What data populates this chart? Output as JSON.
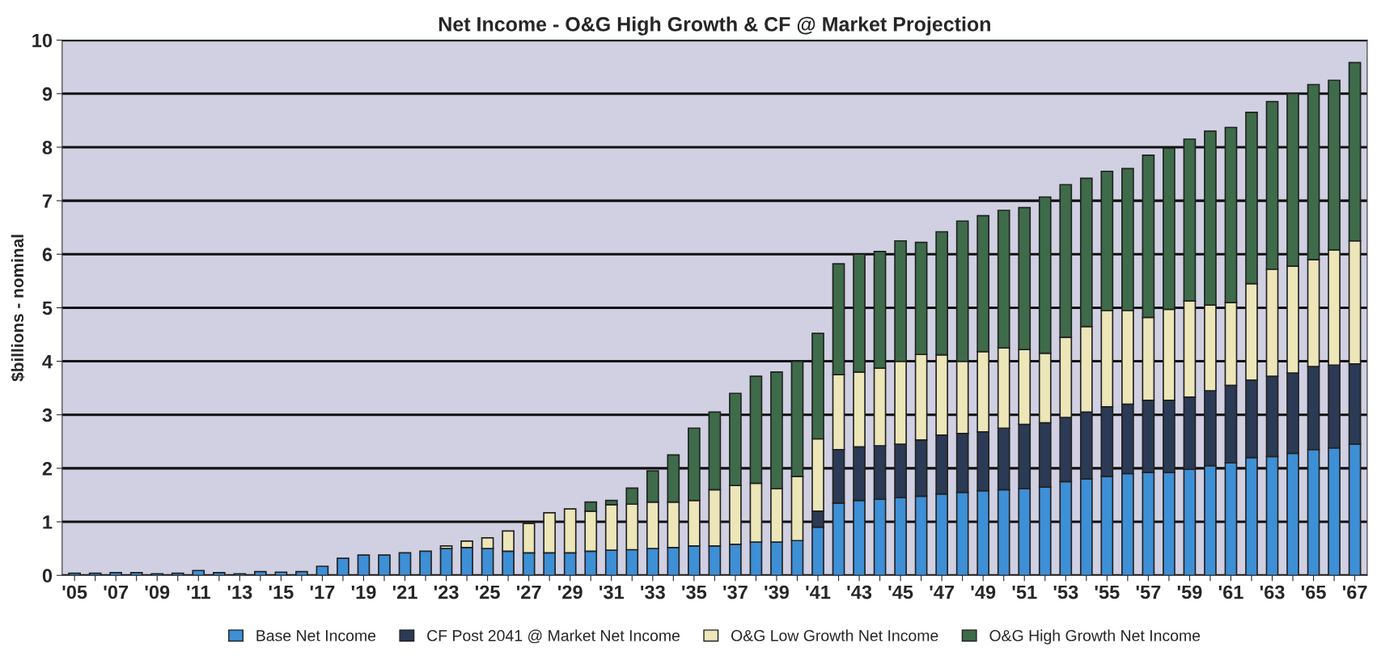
{
  "chart_data": {
    "type": "bar",
    "title": "Net Income - O&G High Growth & CF @ Market Projection",
    "ylabel": "$billions - nominal",
    "stacked": true,
    "grid": "y",
    "legend": "bottom",
    "categories": [
      "'05",
      null,
      "'07",
      null,
      "'09",
      null,
      "'11",
      null,
      "'13",
      null,
      "'15",
      null,
      "'17",
      null,
      "'19",
      null,
      "'21",
      null,
      "'23",
      null,
      "'25",
      null,
      "'27",
      null,
      "'29",
      null,
      "'31",
      null,
      "'33",
      null,
      "'35",
      null,
      "'37",
      null,
      "'39",
      null,
      "'41",
      null,
      "'43",
      null,
      "'45",
      null,
      "'47",
      null,
      "'49",
      null,
      "'51",
      null,
      "'53",
      null,
      "'55",
      null,
      "'57",
      null,
      "'59",
      null,
      "'61",
      null,
      "'63",
      null,
      "'65",
      null,
      "'67"
    ],
    "ylim": [
      0,
      10
    ],
    "yticks": [
      0,
      1,
      2,
      3,
      4,
      5,
      6,
      7,
      8,
      9,
      10
    ],
    "series": [
      {
        "name": "Base Net Income",
        "color": "#3d8fd6",
        "values": [
          0.04,
          0.04,
          0.05,
          0.05,
          0.03,
          0.04,
          0.09,
          0.05,
          0.03,
          0.07,
          0.06,
          0.07,
          0.17,
          0.32,
          0.38,
          0.38,
          0.42,
          0.45,
          0.5,
          0.52,
          0.5,
          0.45,
          0.42,
          0.42,
          0.42,
          0.45,
          0.47,
          0.48,
          0.5,
          0.52,
          0.55,
          0.55,
          0.58,
          0.62,
          0.62,
          0.65,
          0.9,
          1.35,
          1.4,
          1.42,
          1.45,
          1.48,
          1.52,
          1.55,
          1.58,
          1.6,
          1.62,
          1.65,
          1.75,
          1.8,
          1.85,
          1.9,
          1.92,
          1.92,
          1.98,
          2.05,
          2.1,
          2.2,
          2.22,
          2.28,
          2.35,
          2.38,
          2.45
        ]
      },
      {
        "name": "CF Post 2041 @ Market Net Income",
        "color": "#2b3a55",
        "values": [
          null,
          null,
          null,
          null,
          null,
          null,
          null,
          null,
          null,
          null,
          null,
          null,
          null,
          null,
          null,
          null,
          null,
          null,
          null,
          null,
          null,
          null,
          null,
          null,
          null,
          null,
          null,
          null,
          null,
          null,
          null,
          null,
          null,
          null,
          null,
          null,
          0.3,
          1.0,
          1.0,
          1.0,
          1.0,
          1.05,
          1.1,
          1.1,
          1.1,
          1.15,
          1.2,
          1.2,
          1.2,
          1.25,
          1.3,
          1.3,
          1.35,
          1.35,
          1.35,
          1.4,
          1.45,
          1.45,
          1.5,
          1.5,
          1.55,
          1.55,
          1.5
        ]
      },
      {
        "name": "O&G Low Growth Net Income",
        "color": "#ece6b8",
        "values": [
          null,
          null,
          null,
          null,
          null,
          null,
          null,
          null,
          null,
          null,
          null,
          null,
          null,
          null,
          null,
          null,
          null,
          null,
          0.05,
          0.12,
          0.2,
          0.38,
          0.55,
          0.75,
          0.82,
          0.75,
          0.85,
          0.85,
          0.87,
          0.85,
          0.85,
          1.05,
          1.1,
          1.1,
          1.0,
          1.2,
          1.35,
          1.4,
          1.4,
          1.45,
          1.55,
          1.6,
          1.5,
          1.35,
          1.5,
          1.5,
          1.4,
          1.3,
          1.5,
          1.6,
          1.8,
          1.75,
          1.55,
          1.7,
          1.8,
          1.6,
          1.55,
          1.8,
          2.0,
          2.0,
          2.0,
          2.15,
          2.3
        ]
      },
      {
        "name": "O&G High Growth Net Income",
        "color": "#3e6b4a",
        "values": [
          null,
          null,
          null,
          null,
          null,
          null,
          null,
          null,
          null,
          null,
          null,
          null,
          null,
          null,
          null,
          null,
          null,
          null,
          null,
          null,
          null,
          null,
          null,
          null,
          null,
          0.17,
          0.08,
          0.3,
          0.58,
          0.88,
          1.35,
          1.45,
          1.72,
          2.0,
          2.18,
          2.15,
          1.97,
          2.07,
          2.2,
          2.18,
          2.25,
          2.09,
          2.3,
          2.62,
          2.54,
          2.57,
          2.65,
          2.92,
          2.85,
          2.77,
          2.6,
          2.65,
          3.03,
          3.01,
          3.02,
          3.25,
          3.27,
          3.2,
          3.13,
          3.22,
          3.27,
          3.17,
          3.33
        ]
      }
    ]
  }
}
